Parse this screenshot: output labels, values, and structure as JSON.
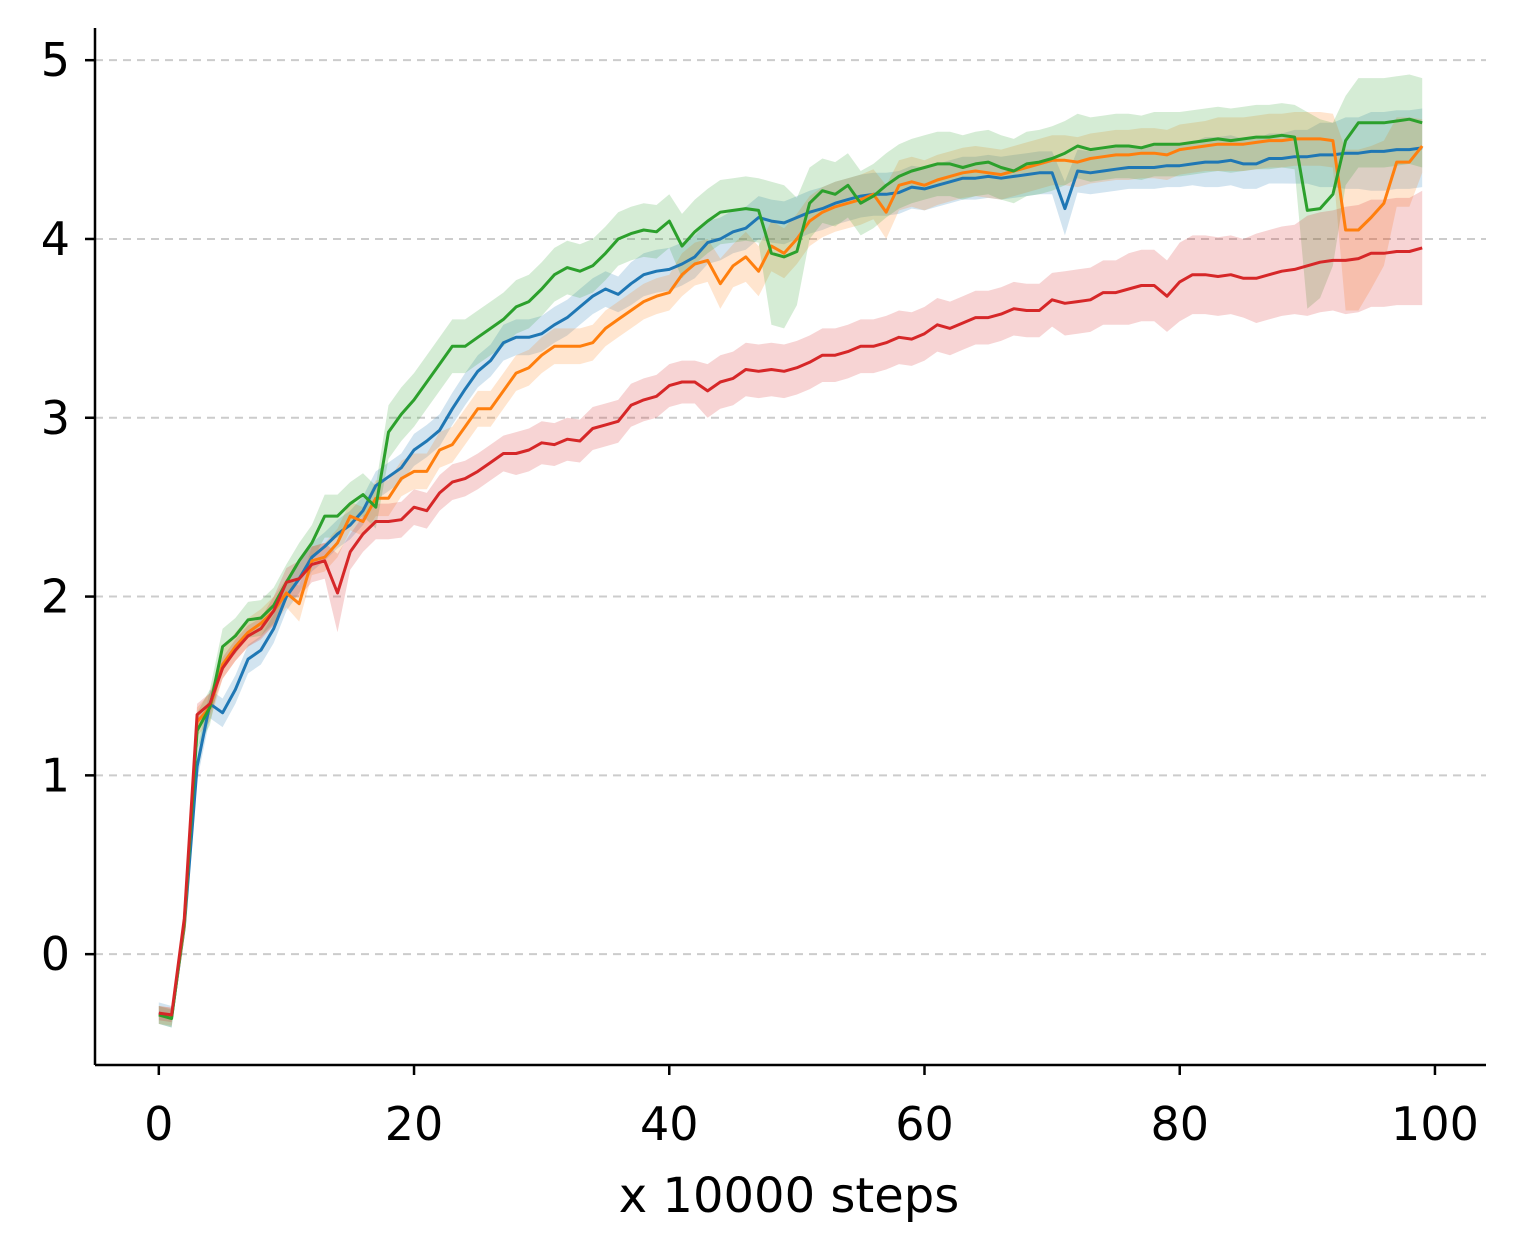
{
  "chart_data": {
    "type": "line",
    "title": "",
    "xlabel": "x 10000 steps",
    "ylabel": "",
    "xlim": [
      -5,
      104
    ],
    "ylim": [
      -0.62,
      5.18
    ],
    "xticks": [
      0,
      20,
      40,
      60,
      80,
      100
    ],
    "yticks": [
      0,
      1,
      2,
      3,
      4,
      5
    ],
    "grid": "horizontal dashed",
    "legend": "none",
    "x_start": 0,
    "x_step": 1,
    "series": [
      {
        "color": "#1f77b4",
        "values": [
          -0.33,
          -0.35,
          0.15,
          1.05,
          1.4,
          1.35,
          1.48,
          1.65,
          1.7,
          1.82,
          2.0,
          2.1,
          2.22,
          2.28,
          2.35,
          2.4,
          2.48,
          2.62,
          2.67,
          2.72,
          2.82,
          2.87,
          2.93,
          3.05,
          3.16,
          3.26,
          3.32,
          3.42,
          3.45,
          3.45,
          3.47,
          3.52,
          3.56,
          3.62,
          3.68,
          3.72,
          3.69,
          3.75,
          3.8,
          3.82,
          3.83,
          3.86,
          3.9,
          3.98,
          4.0,
          4.04,
          4.06,
          4.12,
          4.1,
          4.09,
          4.12,
          4.15,
          4.17,
          4.2,
          4.22,
          4.24,
          4.25,
          4.25,
          4.26,
          4.29,
          4.28,
          4.3,
          4.32,
          4.34,
          4.34,
          4.35,
          4.34,
          4.35,
          4.36,
          4.37,
          4.37,
          4.17,
          4.38,
          4.37,
          4.38,
          4.39,
          4.4,
          4.4,
          4.4,
          4.41,
          4.41,
          4.42,
          4.43,
          4.43,
          4.44,
          4.42,
          4.42,
          4.45,
          4.45,
          4.46,
          4.46,
          4.47,
          4.47,
          4.48,
          4.48,
          4.49,
          4.49,
          4.5,
          4.5,
          4.51
        ],
        "band": [
          0.06,
          0.06,
          0.06,
          0.08,
          0.08,
          0.08,
          0.08,
          0.08,
          0.08,
          0.08,
          0.08,
          0.08,
          0.08,
          0.08,
          0.08,
          0.08,
          0.08,
          0.08,
          0.08,
          0.08,
          0.09,
          0.09,
          0.09,
          0.09,
          0.09,
          0.09,
          0.09,
          0.1,
          0.1,
          0.1,
          0.1,
          0.1,
          0.1,
          0.1,
          0.1,
          0.1,
          0.1,
          0.12,
          0.12,
          0.12,
          0.12,
          0.12,
          0.12,
          0.12,
          0.12,
          0.12,
          0.12,
          0.12,
          0.12,
          0.12,
          0.12,
          0.12,
          0.12,
          0.12,
          0.12,
          0.12,
          0.12,
          0.12,
          0.12,
          0.12,
          0.12,
          0.12,
          0.12,
          0.12,
          0.12,
          0.12,
          0.12,
          0.12,
          0.12,
          0.12,
          0.12,
          0.15,
          0.12,
          0.12,
          0.12,
          0.12,
          0.12,
          0.12,
          0.12,
          0.12,
          0.12,
          0.12,
          0.14,
          0.14,
          0.14,
          0.14,
          0.14,
          0.14,
          0.14,
          0.15,
          0.15,
          0.18,
          0.18,
          0.2,
          0.2,
          0.22,
          0.22,
          0.22,
          0.22,
          0.22
        ]
      },
      {
        "color": "#ff7f0e",
        "values": [
          -0.34,
          -0.35,
          0.16,
          1.3,
          1.38,
          1.62,
          1.72,
          1.8,
          1.85,
          1.92,
          2.02,
          1.96,
          2.2,
          2.22,
          2.3,
          2.45,
          2.42,
          2.55,
          2.55,
          2.66,
          2.7,
          2.7,
          2.82,
          2.85,
          2.95,
          3.05,
          3.05,
          3.15,
          3.25,
          3.28,
          3.35,
          3.4,
          3.4,
          3.4,
          3.42,
          3.5,
          3.55,
          3.6,
          3.65,
          3.68,
          3.7,
          3.8,
          3.86,
          3.88,
          3.75,
          3.85,
          3.9,
          3.82,
          3.96,
          3.92,
          4.0,
          4.1,
          4.15,
          4.18,
          4.2,
          4.22,
          4.25,
          4.15,
          4.3,
          4.32,
          4.3,
          4.33,
          4.35,
          4.37,
          4.38,
          4.37,
          4.36,
          4.38,
          4.4,
          4.42,
          4.44,
          4.44,
          4.43,
          4.45,
          4.46,
          4.47,
          4.47,
          4.48,
          4.48,
          4.47,
          4.5,
          4.51,
          4.52,
          4.53,
          4.53,
          4.53,
          4.54,
          4.55,
          4.55,
          4.56,
          4.56,
          4.56,
          4.55,
          4.05,
          4.05,
          4.12,
          4.2,
          4.43,
          4.43,
          4.52
        ],
        "band": [
          0.05,
          0.05,
          0.05,
          0.08,
          0.08,
          0.08,
          0.08,
          0.08,
          0.08,
          0.08,
          0.08,
          0.1,
          0.08,
          0.08,
          0.08,
          0.08,
          0.08,
          0.1,
          0.1,
          0.1,
          0.1,
          0.1,
          0.1,
          0.1,
          0.1,
          0.1,
          0.1,
          0.1,
          0.1,
          0.1,
          0.1,
          0.1,
          0.1,
          0.1,
          0.1,
          0.1,
          0.1,
          0.1,
          0.1,
          0.1,
          0.1,
          0.12,
          0.12,
          0.12,
          0.14,
          0.12,
          0.14,
          0.14,
          0.14,
          0.14,
          0.14,
          0.14,
          0.14,
          0.14,
          0.14,
          0.14,
          0.14,
          0.15,
          0.14,
          0.14,
          0.14,
          0.14,
          0.14,
          0.14,
          0.14,
          0.14,
          0.14,
          0.14,
          0.14,
          0.14,
          0.14,
          0.14,
          0.14,
          0.14,
          0.14,
          0.14,
          0.14,
          0.14,
          0.14,
          0.14,
          0.14,
          0.14,
          0.14,
          0.15,
          0.15,
          0.15,
          0.15,
          0.15,
          0.15,
          0.15,
          0.15,
          0.15,
          0.15,
          0.45,
          0.45,
          0.4,
          0.35,
          0.25,
          0.25,
          0.15
        ]
      },
      {
        "color": "#2ca02c",
        "values": [
          -0.34,
          -0.36,
          0.18,
          1.25,
          1.38,
          1.72,
          1.78,
          1.87,
          1.88,
          1.95,
          2.08,
          2.2,
          2.3,
          2.45,
          2.45,
          2.52,
          2.57,
          2.5,
          2.92,
          3.02,
          3.1,
          3.2,
          3.3,
          3.4,
          3.4,
          3.45,
          3.5,
          3.55,
          3.62,
          3.65,
          3.72,
          3.8,
          3.84,
          3.82,
          3.85,
          3.92,
          4.0,
          4.03,
          4.05,
          4.04,
          4.1,
          3.96,
          4.04,
          4.1,
          4.15,
          4.16,
          4.17,
          4.16,
          3.92,
          3.9,
          3.93,
          4.2,
          4.27,
          4.25,
          4.3,
          4.2,
          4.24,
          4.3,
          4.35,
          4.38,
          4.4,
          4.42,
          4.42,
          4.4,
          4.42,
          4.43,
          4.4,
          4.38,
          4.42,
          4.43,
          4.45,
          4.48,
          4.52,
          4.5,
          4.51,
          4.52,
          4.52,
          4.51,
          4.53,
          4.53,
          4.53,
          4.54,
          4.55,
          4.56,
          4.55,
          4.56,
          4.57,
          4.57,
          4.58,
          4.57,
          4.16,
          4.17,
          4.25,
          4.55,
          4.65,
          4.65,
          4.65,
          4.66,
          4.67,
          4.65
        ],
        "band": [
          0.05,
          0.05,
          0.05,
          0.1,
          0.1,
          0.1,
          0.1,
          0.1,
          0.1,
          0.1,
          0.1,
          0.1,
          0.1,
          0.12,
          0.12,
          0.12,
          0.12,
          0.12,
          0.15,
          0.15,
          0.15,
          0.15,
          0.15,
          0.15,
          0.15,
          0.15,
          0.15,
          0.15,
          0.15,
          0.15,
          0.15,
          0.15,
          0.15,
          0.15,
          0.15,
          0.15,
          0.15,
          0.15,
          0.15,
          0.15,
          0.15,
          0.18,
          0.18,
          0.18,
          0.18,
          0.18,
          0.18,
          0.18,
          0.4,
          0.4,
          0.3,
          0.2,
          0.18,
          0.18,
          0.18,
          0.18,
          0.18,
          0.18,
          0.18,
          0.18,
          0.18,
          0.18,
          0.18,
          0.18,
          0.18,
          0.18,
          0.18,
          0.18,
          0.18,
          0.18,
          0.18,
          0.18,
          0.18,
          0.18,
          0.18,
          0.18,
          0.18,
          0.18,
          0.18,
          0.18,
          0.18,
          0.18,
          0.18,
          0.18,
          0.18,
          0.18,
          0.18,
          0.18,
          0.18,
          0.18,
          0.55,
          0.5,
          0.4,
          0.25,
          0.25,
          0.25,
          0.25,
          0.25,
          0.25,
          0.25
        ]
      },
      {
        "color": "#d62728",
        "values": [
          -0.33,
          -0.34,
          0.2,
          1.34,
          1.4,
          1.6,
          1.7,
          1.78,
          1.82,
          1.92,
          2.08,
          2.1,
          2.18,
          2.2,
          2.02,
          2.25,
          2.35,
          2.42,
          2.42,
          2.43,
          2.5,
          2.48,
          2.58,
          2.64,
          2.66,
          2.7,
          2.75,
          2.8,
          2.8,
          2.82,
          2.86,
          2.85,
          2.88,
          2.87,
          2.94,
          2.96,
          2.98,
          3.07,
          3.1,
          3.12,
          3.18,
          3.2,
          3.2,
          3.15,
          3.2,
          3.22,
          3.27,
          3.26,
          3.27,
          3.26,
          3.28,
          3.31,
          3.35,
          3.35,
          3.37,
          3.4,
          3.4,
          3.42,
          3.45,
          3.44,
          3.47,
          3.52,
          3.5,
          3.53,
          3.56,
          3.56,
          3.58,
          3.61,
          3.6,
          3.6,
          3.66,
          3.64,
          3.65,
          3.66,
          3.7,
          3.7,
          3.72,
          3.74,
          3.74,
          3.68,
          3.76,
          3.8,
          3.8,
          3.79,
          3.8,
          3.78,
          3.78,
          3.8,
          3.82,
          3.83,
          3.85,
          3.87,
          3.88,
          3.88,
          3.89,
          3.92,
          3.92,
          3.93,
          3.93,
          3.95
        ],
        "band": [
          0.04,
          0.04,
          0.04,
          0.06,
          0.06,
          0.06,
          0.06,
          0.06,
          0.06,
          0.08,
          0.08,
          0.1,
          0.1,
          0.1,
          0.22,
          0.1,
          0.1,
          0.1,
          0.1,
          0.1,
          0.1,
          0.1,
          0.1,
          0.1,
          0.1,
          0.1,
          0.1,
          0.1,
          0.12,
          0.12,
          0.12,
          0.12,
          0.12,
          0.12,
          0.12,
          0.12,
          0.12,
          0.12,
          0.12,
          0.12,
          0.12,
          0.12,
          0.12,
          0.15,
          0.15,
          0.15,
          0.15,
          0.15,
          0.15,
          0.15,
          0.15,
          0.15,
          0.15,
          0.15,
          0.15,
          0.15,
          0.15,
          0.15,
          0.15,
          0.15,
          0.15,
          0.15,
          0.15,
          0.15,
          0.15,
          0.15,
          0.15,
          0.15,
          0.15,
          0.15,
          0.15,
          0.18,
          0.18,
          0.18,
          0.18,
          0.18,
          0.2,
          0.2,
          0.2,
          0.2,
          0.22,
          0.22,
          0.22,
          0.22,
          0.22,
          0.22,
          0.25,
          0.25,
          0.25,
          0.25,
          0.28,
          0.28,
          0.28,
          0.3,
          0.3,
          0.3,
          0.3,
          0.3,
          0.3,
          0.32
        ]
      }
    ]
  }
}
